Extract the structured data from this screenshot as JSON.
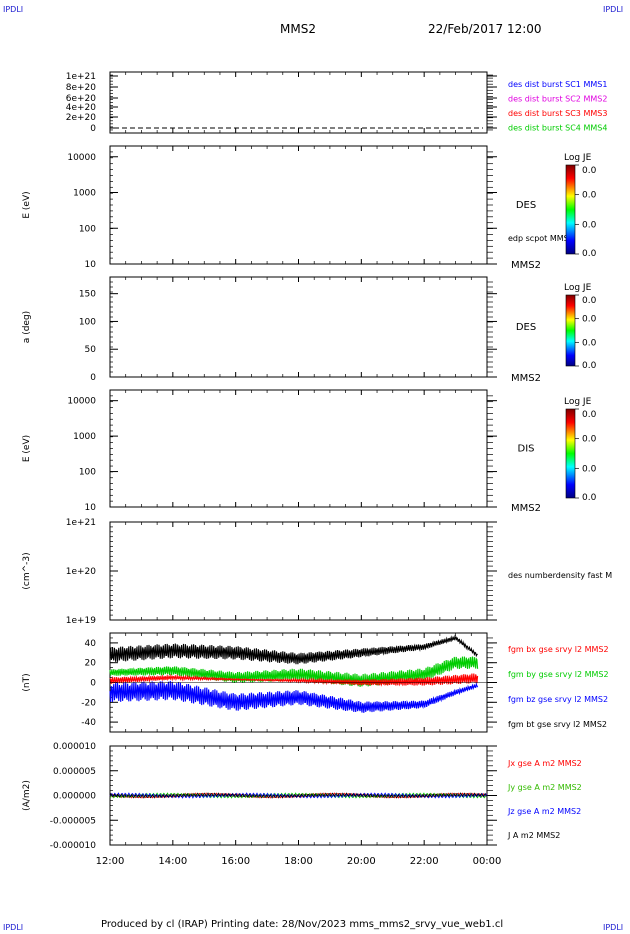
{
  "corners": {
    "tl": "IPDLI",
    "tr": "IPDLI",
    "bl": "IPDLI",
    "br": "IPDLI"
  },
  "header": {
    "title": "MMS2",
    "datetime": "22/Feb/2017 12:00"
  },
  "footer": {
    "text": "Produced by cl (IRAP)   Printing date: 28/Nov/2023   mms_mms2_srvy_vue_web1.cl"
  },
  "time_axis": {
    "ticks": [
      "12:00",
      "14:00",
      "16:00",
      "18:00",
      "20:00",
      "22:00",
      "00:00"
    ]
  },
  "colors": {
    "blue": "#0000ff",
    "magenta": "#e000e0",
    "red": "#ff0000",
    "green": "#00cc00",
    "black": "#000000"
  },
  "colorbar": {
    "title": "Log JE",
    "labels": [
      "0.0",
      "0.0",
      "0.0",
      "0.0"
    ]
  },
  "chart_data": [
    {
      "type": "line",
      "ylabels": [
        "1e+21",
        "8e+20",
        "6e+20",
        "4e+20",
        "2e+20",
        "0"
      ],
      "ylim": [
        0,
        1e+21
      ],
      "legend": [
        "des dist burst SC1 MMS1",
        "des dist burst SC2 MMS2",
        "des dist burst SC3 MMS3",
        "des dist burst SC4 MMS4"
      ]
    },
    {
      "type": "heatmap",
      "ylabel": "E (eV)",
      "yticks": [
        "10000",
        "1000",
        "100",
        "10"
      ],
      "scale": "log",
      "ylim": [
        10,
        20000
      ],
      "label": "DES",
      "sublabel": "edp scpot MMS2",
      "satellite": "MMS2"
    },
    {
      "type": "heatmap",
      "ylabel": "a (deg)",
      "yticks": [
        "150",
        "100",
        "50",
        "0"
      ],
      "ylim": [
        0,
        180
      ],
      "label": "DES",
      "satellite": "MMS2"
    },
    {
      "type": "heatmap",
      "ylabel": "E (eV)",
      "yticks": [
        "10000",
        "1000",
        "100",
        "10"
      ],
      "scale": "log",
      "ylim": [
        10,
        20000
      ],
      "label": "DIS",
      "satellite": "MMS2"
    },
    {
      "type": "line",
      "ylabel": "(cm^-3)",
      "yticks": [
        "1e+21",
        "1e+20",
        "1e+19"
      ],
      "scale": "log",
      "ylim": [
        1e+19,
        1e+21
      ],
      "legend": [
        "des numberdensity fast M"
      ]
    },
    {
      "type": "line",
      "ylabel": "(nT)",
      "yticks": [
        "40",
        "20",
        "0",
        "-20",
        "-40"
      ],
      "ylim": [
        -50,
        50
      ],
      "legend": [
        "fgm bx gse srvy l2 MMS2",
        "fgm by gse srvy l2 MMS2",
        "fgm bz gse srvy l2 MMS2",
        "fgm bt gse srvy l2 MMS2"
      ],
      "x": [
        "12:00",
        "14:00",
        "16:00",
        "18:00",
        "20:00",
        "22:00",
        "23:00",
        "00:00"
      ],
      "series": [
        {
          "name": "fgm bt gse srvy l2 MMS2",
          "values": [
            28,
            32,
            30,
            24,
            30,
            36,
            45,
            20
          ]
        },
        {
          "name": "fgm by gse srvy l2 MMS2",
          "values": [
            10,
            12,
            5,
            8,
            2,
            8,
            20,
            20
          ]
        },
        {
          "name": "fgm bx gse srvy l2 MMS2",
          "values": [
            2,
            5,
            3,
            2,
            0,
            1,
            3,
            5
          ]
        },
        {
          "name": "fgm bz gse srvy l2 MMS2",
          "values": [
            -10,
            -8,
            -20,
            -15,
            -25,
            -22,
            -10,
            0
          ]
        }
      ]
    },
    {
      "type": "line",
      "ylabel": "(A/m2)",
      "yticks": [
        "0.000010",
        "0.000005",
        "0.000000",
        "-0.000005",
        "-0.000010"
      ],
      "ylim": [
        -1e-05,
        1e-05
      ],
      "legend": [
        "Jx gse A m2 MMS2",
        "Jy gse A m2 MMS2",
        "Jz gse A m2 MMS2",
        "J A m2 MMS2"
      ]
    }
  ]
}
